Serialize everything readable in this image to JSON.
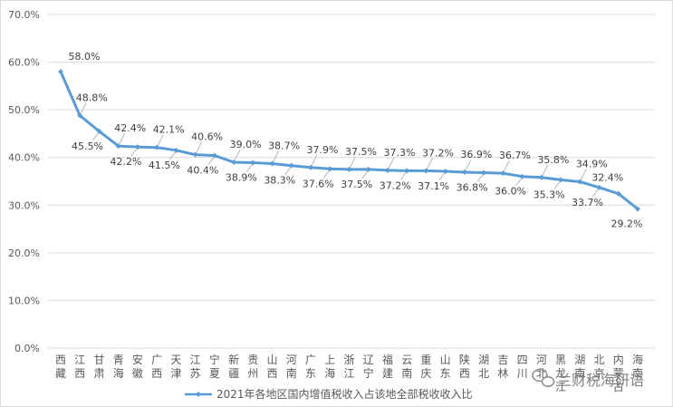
{
  "chart_data": {
    "type": "line",
    "categories": [
      "西藏",
      "江西",
      "甘肃",
      "青海",
      "安徽",
      "广西",
      "天津",
      "江苏",
      "宁夏",
      "新疆",
      "贵州",
      "山西",
      "河南",
      "广东",
      "上海",
      "浙江",
      "辽宁",
      "福建",
      "云南",
      "重庆",
      "山东",
      "陕西",
      "湖北",
      "吉林",
      "四川",
      "河北",
      "黑龙江",
      "湖南",
      "北京",
      "内蒙古",
      "海南"
    ],
    "series": [
      {
        "name": "2021年各地区国内增值税收入占该地全部税收收入比",
        "values": [
          58.0,
          48.8,
          45.5,
          42.4,
          42.2,
          42.1,
          41.5,
          40.6,
          40.4,
          39.0,
          38.9,
          38.7,
          38.3,
          37.9,
          37.6,
          37.5,
          37.5,
          37.3,
          37.2,
          37.2,
          37.1,
          36.9,
          36.8,
          36.7,
          36.0,
          35.8,
          35.3,
          34.9,
          33.7,
          32.4,
          29.2
        ],
        "labels": [
          "58.0%",
          "48.8%",
          "45.5%",
          "42.4%",
          "42.2%",
          "42.1%",
          "41.5%",
          "40.6%",
          "40.4%",
          "39.0%",
          "38.9%",
          "38.7%",
          "38.3%",
          "37.9%",
          "37.6%",
          "37.5%",
          "37.5%",
          "37.3%",
          "37.2%",
          "37.2%",
          "37.1%",
          "36.9%",
          "36.8%",
          "36.7%",
          "36.0%",
          "35.8%",
          "35.3%",
          "34.9%",
          "33.7%",
          "32.4%",
          "29.2%"
        ]
      }
    ],
    "yticks": [
      "0.0%",
      "10.0%",
      "20.0%",
      "30.0%",
      "40.0%",
      "50.0%",
      "60.0%",
      "70.0%"
    ],
    "ylim": [
      0,
      70
    ],
    "grid": true,
    "legend": "bottom",
    "line_color": "#5b9bd5"
  },
  "watermark": {
    "text": "兰财税海研语",
    "icon": "wechat-icon"
  }
}
